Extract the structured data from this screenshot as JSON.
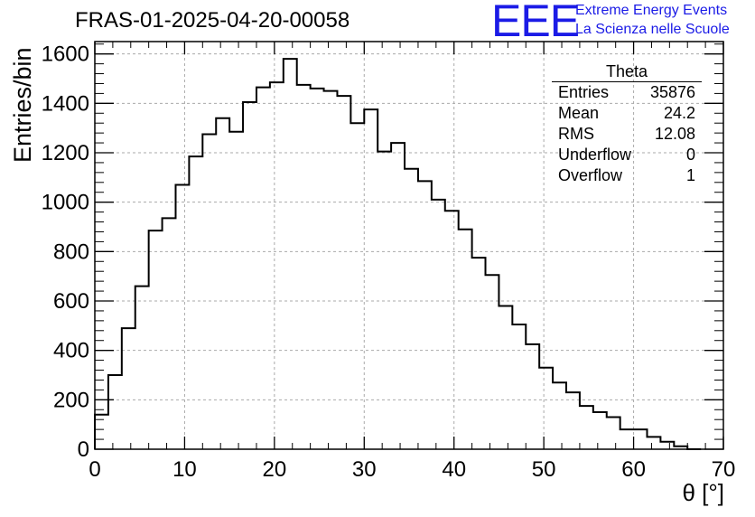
{
  "header": {
    "run_title": "FRAS-01-2025-04-20-00058",
    "logo_text": "EEE",
    "logo_line1": "Extreme Energy Events",
    "logo_line2": "La Scienza nelle Scuole"
  },
  "stats": {
    "title": "Theta",
    "rows": [
      {
        "label": "Entries",
        "value": "35876"
      },
      {
        "label": "Mean",
        "value": "24.2"
      },
      {
        "label": "RMS",
        "value": "12.08"
      },
      {
        "label": "Underflow",
        "value": "0"
      },
      {
        "label": "Overflow",
        "value": "1"
      }
    ]
  },
  "colors": {
    "logo": "#1b1be6",
    "axis": "#000000",
    "grid": "#aaaaaa",
    "line": "#000000"
  },
  "chart_data": {
    "type": "histogram",
    "title": "FRAS-01-2025-04-20-00058",
    "xlabel": "θ [°]",
    "ylabel": "Entries/bin",
    "xlim": [
      0,
      70
    ],
    "ylim": [
      0,
      1650
    ],
    "grid": true,
    "bin_width": 1.5,
    "x_start": 0,
    "xticks": [
      0,
      10,
      20,
      30,
      40,
      50,
      60,
      70
    ],
    "yticks": [
      0,
      200,
      400,
      600,
      800,
      1000,
      1200,
      1400,
      1600
    ],
    "values": [
      140,
      300,
      490,
      660,
      885,
      935,
      1070,
      1185,
      1275,
      1340,
      1285,
      1405,
      1465,
      1485,
      1580,
      1475,
      1460,
      1450,
      1430,
      1320,
      1375,
      1205,
      1240,
      1135,
      1085,
      1010,
      965,
      890,
      775,
      705,
      580,
      505,
      425,
      330,
      270,
      230,
      175,
      150,
      130,
      80,
      80,
      50,
      30,
      12,
      0
    ]
  }
}
